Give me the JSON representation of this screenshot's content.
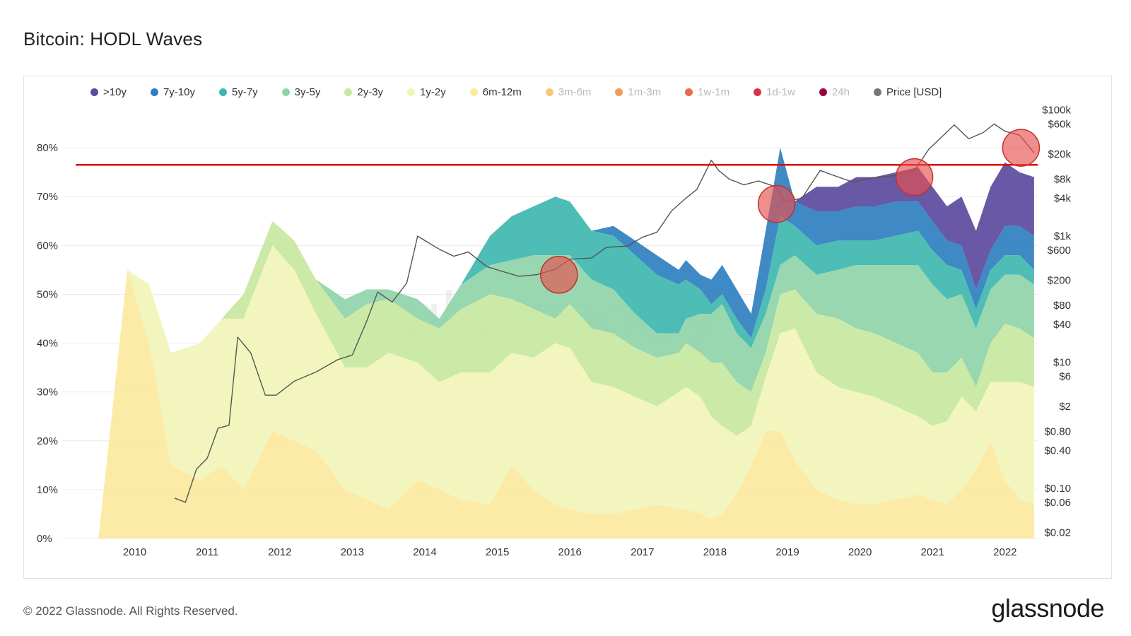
{
  "title": "Bitcoin: HODL Waves",
  "footer": {
    "copyright": "© 2022 Glassnode. All Rights Reserved.",
    "brand": "glassnode"
  },
  "watermark": "glassnode",
  "legend": [
    {
      "label": ">10y",
      "color": "#5b4a9e",
      "active": true
    },
    {
      "label": "7y-10y",
      "color": "#2f7fc0",
      "active": true
    },
    {
      "label": "5y-7y",
      "color": "#3fb7b0",
      "active": true
    },
    {
      "label": "3y-5y",
      "color": "#8fd4a8",
      "active": true
    },
    {
      "label": "2y-3y",
      "color": "#c8e8a0",
      "active": true
    },
    {
      "label": "1y-2y",
      "color": "#f1f5b8",
      "active": true
    },
    {
      "label": "6m-12m",
      "color": "#fbe9a0",
      "active": true
    },
    {
      "label": "3m-6m",
      "color": "#f6c87a",
      "active": false
    },
    {
      "label": "1m-3m",
      "color": "#f39a55",
      "active": false
    },
    {
      "label": "1w-1m",
      "color": "#ec6b46",
      "active": false
    },
    {
      "label": "1d-1w",
      "color": "#d6334b",
      "active": false
    },
    {
      "label": "24h",
      "color": "#9e0142",
      "active": false
    },
    {
      "label": "Price [USD]",
      "color": "#777777",
      "active": true
    }
  ],
  "chart_data": {
    "type": "area",
    "stacked": true,
    "title": "Bitcoin: HODL Waves",
    "x_ticks": [
      "2010",
      "2011",
      "2012",
      "2013",
      "2014",
      "2015",
      "2016",
      "2017",
      "2018",
      "2019",
      "2020",
      "2021",
      "2022"
    ],
    "xlim": [
      2009.0,
      2022.45
    ],
    "y_left_ticks": [
      "80%",
      "70%",
      "60%",
      "50%",
      "40%",
      "30%",
      "20%",
      "10%",
      "0%"
    ],
    "ylim_left": [
      0,
      90
    ],
    "y_right_ticks": [
      "$100k",
      "$60k",
      "$20k",
      "$8k",
      "$4k",
      "$1k",
      "$600",
      "$200",
      "$80",
      "$40",
      "$10",
      "$6",
      "$2",
      "$0.80",
      "$0.40",
      "$0.10",
      "$0.06",
      "$0.02"
    ],
    "ylim_right_log": [
      0.016,
      150000
    ],
    "x": [
      2009.5,
      2009.9,
      2010.2,
      2010.5,
      2010.9,
      2011.2,
      2011.5,
      2011.9,
      2012.2,
      2012.5,
      2012.9,
      2013.2,
      2013.5,
      2013.9,
      2014.2,
      2014.5,
      2014.9,
      2015.2,
      2015.5,
      2015.8,
      2016.0,
      2016.3,
      2016.6,
      2016.9,
      2017.2,
      2017.5,
      2017.6,
      2017.8,
      2017.95,
      2018.1,
      2018.3,
      2018.5,
      2018.7,
      2018.9,
      2019.1,
      2019.4,
      2019.7,
      2019.95,
      2020.2,
      2020.5,
      2020.8,
      2021.0,
      2021.2,
      2021.4,
      2021.6,
      2021.8,
      2022.0,
      2022.2,
      2022.4
    ],
    "series": [
      {
        "name": "6m-12m",
        "values": [
          0,
          55,
          40,
          15,
          12,
          15,
          10,
          22,
          20,
          18,
          10,
          8,
          6,
          12,
          10,
          8,
          7,
          15,
          10,
          7,
          6,
          5,
          5,
          6,
          7,
          6,
          6,
          5,
          4,
          5,
          9,
          15,
          22,
          22,
          16,
          10,
          8,
          7,
          7,
          8,
          9,
          8,
          7,
          10,
          14,
          20,
          12,
          8,
          7
        ]
      },
      {
        "name": "1y-2y",
        "values": [
          0,
          0,
          12,
          23,
          28,
          30,
          35,
          38,
          35,
          28,
          25,
          27,
          32,
          24,
          22,
          26,
          27,
          23,
          27,
          33,
          33,
          27,
          26,
          23,
          20,
          24,
          25,
          24,
          21,
          18,
          12,
          8,
          11,
          20,
          27,
          24,
          23,
          23,
          22,
          19,
          16,
          15,
          17,
          19,
          12,
          12,
          20,
          24,
          24
        ]
      },
      {
        "name": "2y-3y",
        "values": [
          0,
          0,
          0,
          0,
          0,
          0,
          5,
          5,
          6,
          7,
          10,
          13,
          11,
          9,
          11,
          13,
          16,
          11,
          10,
          5,
          9,
          11,
          11,
          10,
          10,
          8,
          9,
          9,
          11,
          13,
          11,
          7,
          5,
          8,
          8,
          12,
          14,
          13,
          13,
          13,
          13,
          11,
          10,
          8,
          5,
          8,
          12,
          11,
          10
        ]
      },
      {
        "name": "3y-5y",
        "values": [
          0,
          0,
          0,
          0,
          0,
          0,
          0,
          0,
          0,
          0,
          4,
          3,
          2,
          4,
          2,
          5,
          6,
          8,
          11,
          13,
          10,
          10,
          9,
          7,
          5,
          4,
          5,
          8,
          10,
          12,
          10,
          9,
          8,
          6,
          7,
          8,
          10,
          13,
          14,
          16,
          18,
          18,
          15,
          13,
          12,
          11,
          10,
          11,
          11
        ]
      },
      {
        "name": "5y-7y",
        "values": [
          0,
          0,
          0,
          0,
          0,
          0,
          0,
          0,
          0,
          0,
          0,
          0,
          0,
          0,
          0,
          0,
          6,
          9,
          10,
          12,
          11,
          10,
          11,
          12,
          12,
          10,
          8,
          5,
          2,
          2,
          3,
          2,
          5,
          10,
          6,
          6,
          6,
          5,
          5,
          6,
          7,
          7,
          7,
          5,
          4,
          4,
          4,
          4,
          3
        ]
      },
      {
        "name": "7y-10y",
        "values": [
          0,
          0,
          0,
          0,
          0,
          0,
          0,
          0,
          0,
          0,
          0,
          0,
          0,
          0,
          0,
          0,
          0,
          0,
          0,
          0,
          0,
          0,
          2,
          3,
          4,
          3,
          4,
          3,
          5,
          6,
          6,
          5,
          12,
          14,
          5,
          7,
          6,
          7,
          7,
          7,
          6,
          6,
          5,
          5,
          4,
          4,
          6,
          6,
          7
        ]
      },
      {
        "name": ">10y",
        "values": [
          0,
          0,
          0,
          0,
          0,
          0,
          0,
          0,
          0,
          0,
          0,
          0,
          0,
          0,
          0,
          0,
          0,
          0,
          0,
          0,
          0,
          0,
          0,
          0,
          0,
          0,
          0,
          0,
          0,
          0,
          0,
          0,
          0,
          0,
          0,
          5,
          5,
          6,
          6,
          6,
          7,
          7,
          7,
          10,
          12,
          13,
          13,
          11,
          12
        ]
      },
      {
        "name": "Price [USD]",
        "axis": "right",
        "x": [
          2010.55,
          2010.7,
          2010.85,
          2011.0,
          2011.15,
          2011.3,
          2011.42,
          2011.6,
          2011.8,
          2011.95,
          2012.2,
          2012.5,
          2012.8,
          2013.0,
          2013.2,
          2013.35,
          2013.55,
          2013.75,
          2013.9,
          2014.0,
          2014.2,
          2014.4,
          2014.6,
          2014.85,
          2015.05,
          2015.3,
          2015.55,
          2015.8,
          2016.0,
          2016.3,
          2016.5,
          2016.8,
          2017.0,
          2017.2,
          2017.4,
          2017.6,
          2017.75,
          2017.95,
          2018.05,
          2018.2,
          2018.4,
          2018.6,
          2018.85,
          2018.95,
          2019.2,
          2019.45,
          2019.6,
          2019.9,
          2020.2,
          2020.5,
          2020.75,
          2020.95,
          2021.1,
          2021.3,
          2021.5,
          2021.7,
          2021.85,
          2022.0,
          2022.2,
          2022.4
        ],
        "values": [
          0.07,
          0.06,
          0.2,
          0.3,
          0.9,
          1.0,
          25,
          14,
          3,
          3,
          5,
          7,
          11,
          13,
          45,
          130,
          90,
          180,
          1000,
          850,
          620,
          480,
          560,
          330,
          280,
          230,
          245,
          300,
          430,
          450,
          660,
          700,
          960,
          1150,
          2500,
          4000,
          5500,
          16000,
          11000,
          8000,
          6500,
          7500,
          6000,
          3500,
          4000,
          11000,
          9500,
          7200,
          8500,
          9200,
          11000,
          24000,
          35000,
          58000,
          35000,
          44000,
          60000,
          46000,
          40000,
          21000
        ]
      }
    ],
    "annotations": [
      {
        "type": "hline",
        "axis": "left",
        "y": 76.5,
        "color": "#e00000"
      },
      {
        "type": "circle",
        "x": 2015.85,
        "y_percent": 54
      },
      {
        "type": "circle",
        "x": 2018.85,
        "y_percent": 68.5
      },
      {
        "type": "circle",
        "x": 2020.75,
        "y_percent": 74
      },
      {
        "type": "circle",
        "x": 2022.22,
        "y_percent": 80
      }
    ]
  }
}
